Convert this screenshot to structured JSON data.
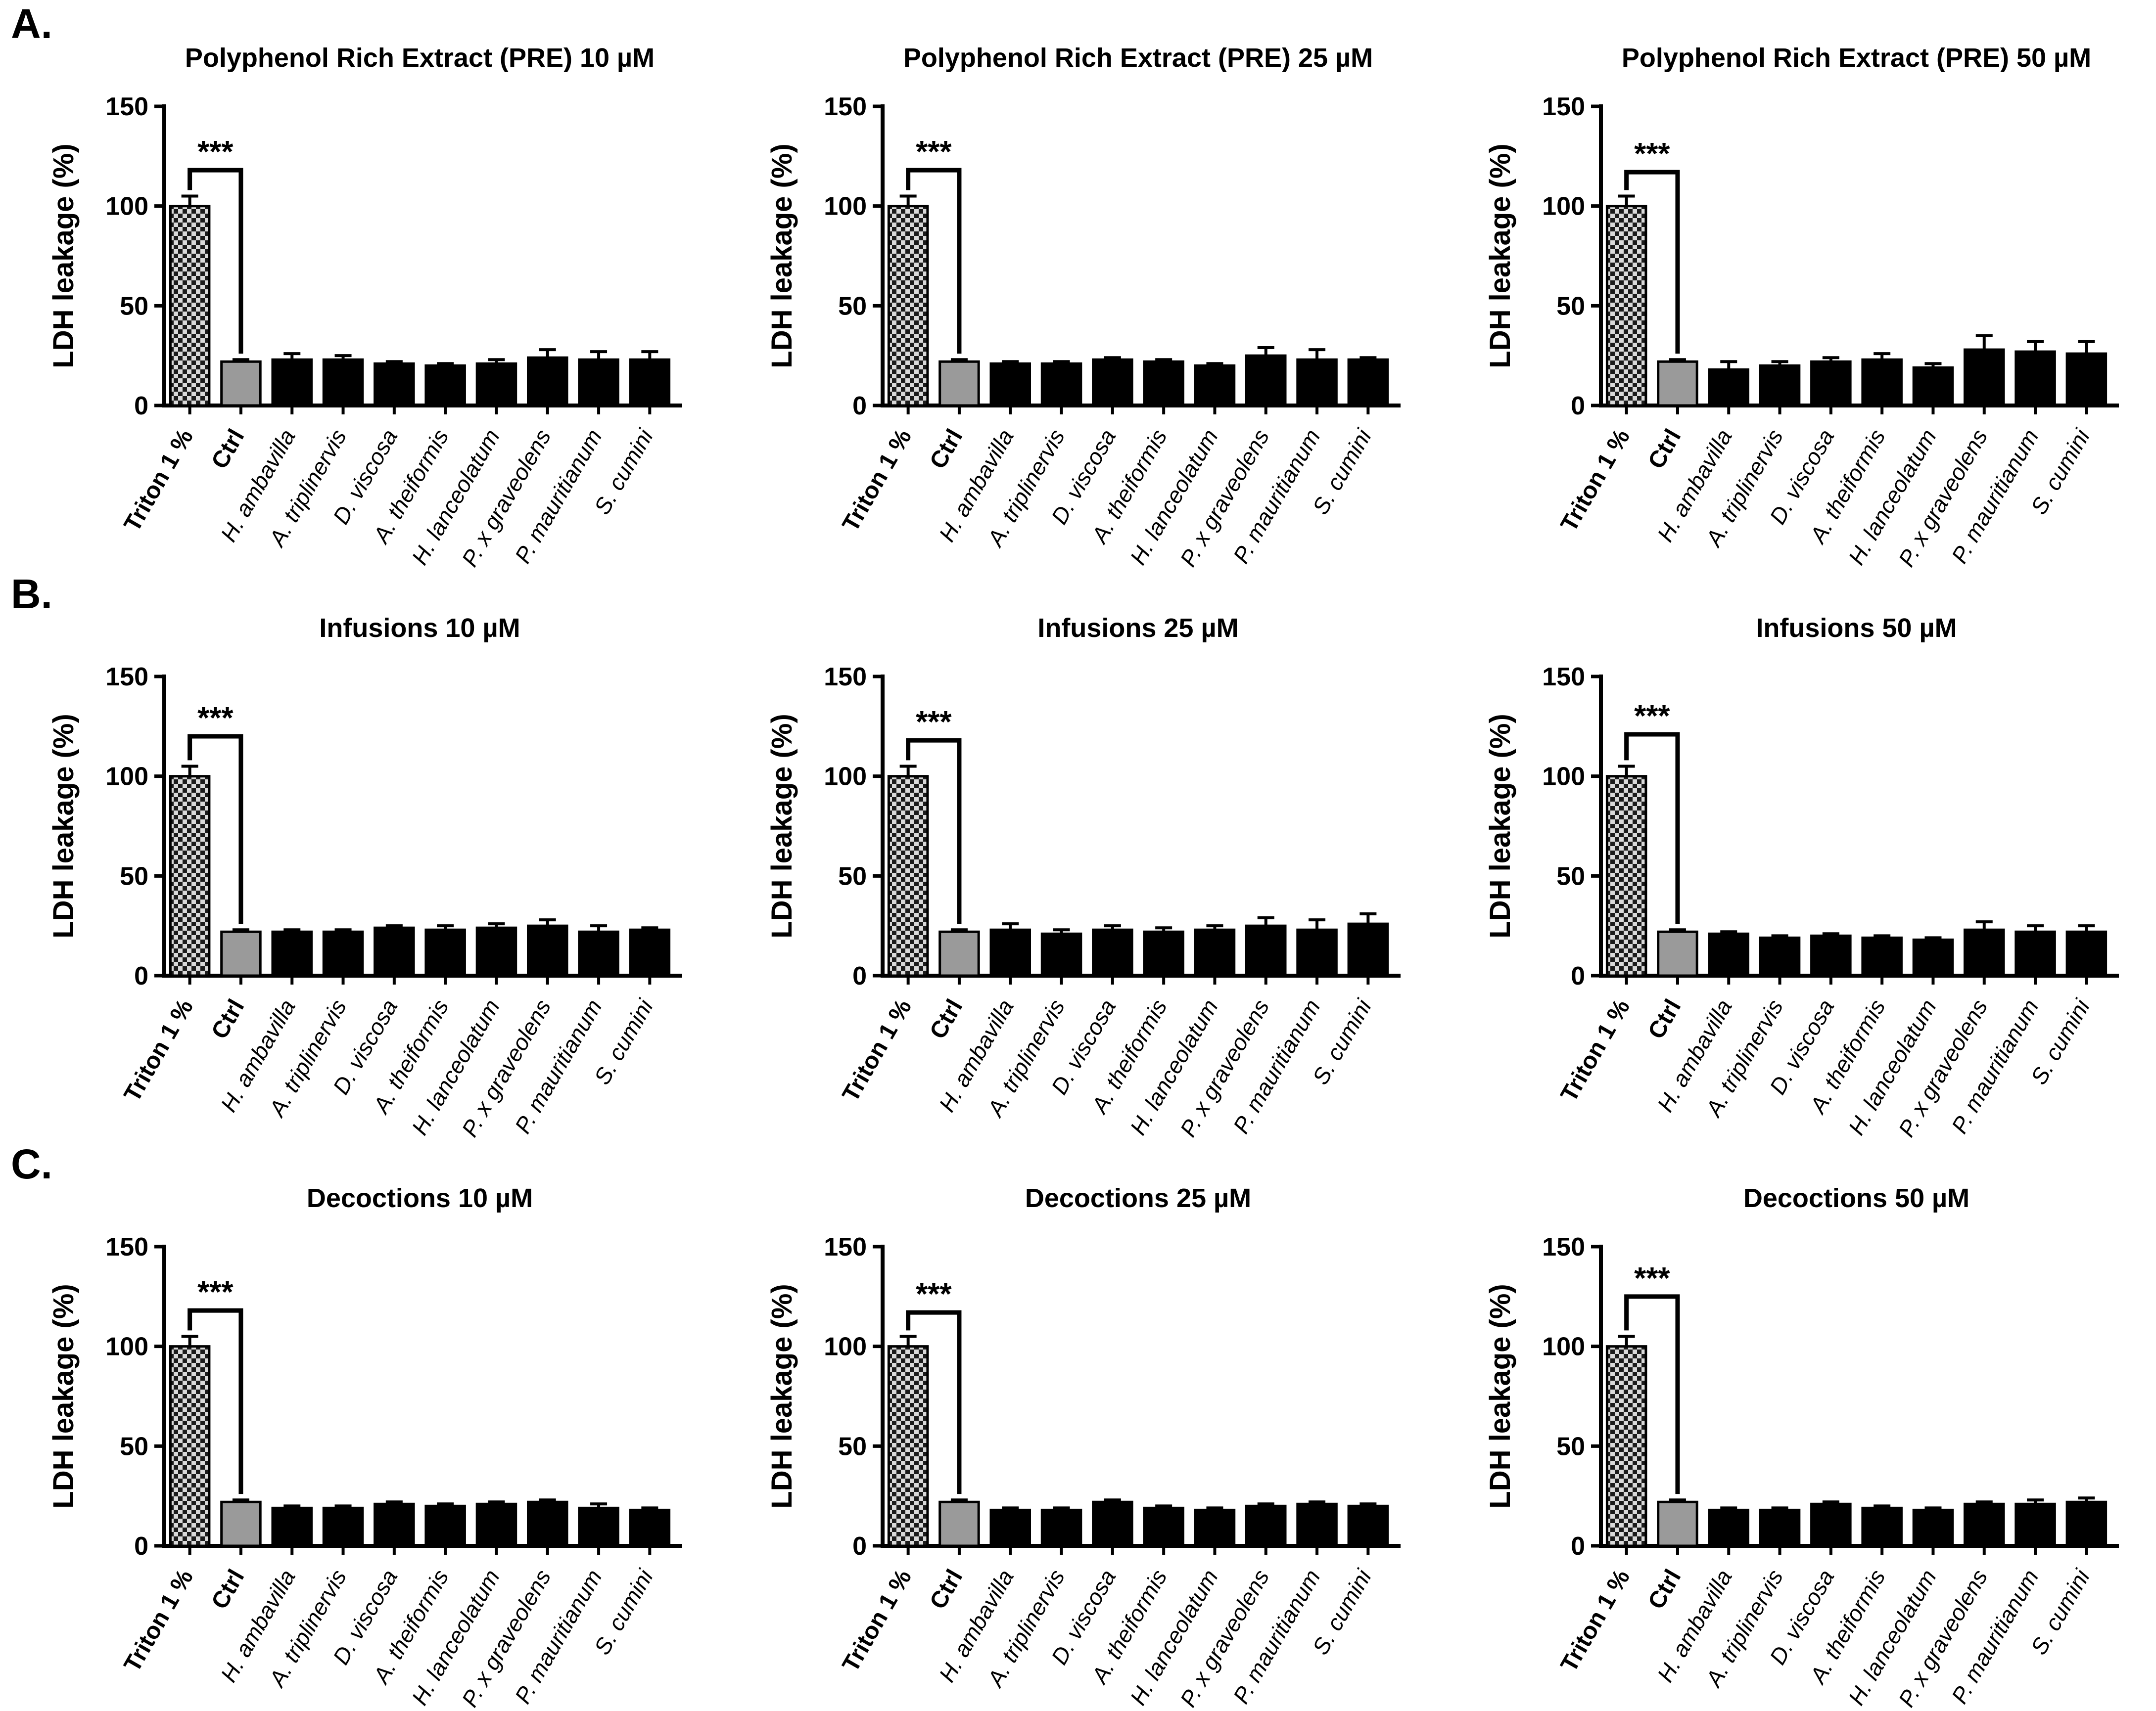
{
  "panels": [
    {
      "label": "A."
    },
    {
      "label": "B."
    },
    {
      "label": "C."
    }
  ],
  "colors": {
    "axis": "#000000",
    "bar_black": "#000000",
    "ctrl_gray": "#9a9a9a",
    "checker_fg": "#1b1b1b",
    "checker_bg": "#d9d9d9",
    "bar_border": "#000000"
  },
  "chart_data": [
    {
      "type": "bar",
      "panel": "A.",
      "title": "Polyphenol Rich Extract (PRE) 10 µM",
      "ylabel": "LDH leakage (%)",
      "ylim": [
        0,
        150
      ],
      "yticks": [
        0,
        50,
        100,
        150
      ],
      "categories": [
        "Triton 1 %",
        "Ctrl",
        "H. ambavilla",
        "A. triplinervis",
        "D. viscosa",
        "A. theiformis",
        "H. lanceolatum",
        "P. x graveolens",
        "P. mauritianum",
        "S. cumini"
      ],
      "values": [
        100,
        22,
        23,
        23,
        21,
        20,
        21,
        24,
        23,
        23
      ],
      "errors": [
        5,
        1,
        3,
        2,
        1,
        1,
        2,
        4,
        4,
        4
      ],
      "bar_types": [
        "checker",
        "gray",
        "black",
        "black",
        "black",
        "black",
        "black",
        "black",
        "black",
        "black"
      ],
      "significance": {
        "label": "***",
        "between": [
          "Triton 1 %",
          "Ctrl"
        ],
        "bracket_top": 118
      }
    },
    {
      "type": "bar",
      "panel": "A.",
      "title": "Polyphenol Rich Extract (PRE) 25 µM",
      "ylabel": "LDH leakage (%)",
      "ylim": [
        0,
        150
      ],
      "yticks": [
        0,
        50,
        100,
        150
      ],
      "categories": [
        "Triton 1 %",
        "Ctrl",
        "H. ambavilla",
        "A. triplinervis",
        "D. viscosa",
        "A. theiformis",
        "H. lanceolatum",
        "P. x graveolens",
        "P. mauritianum",
        "S. cumini"
      ],
      "values": [
        100,
        22,
        21,
        21,
        23,
        22,
        20,
        25,
        23,
        23
      ],
      "errors": [
        5,
        1,
        1,
        1,
        1,
        1,
        1,
        4,
        5,
        1
      ],
      "bar_types": [
        "checker",
        "gray",
        "black",
        "black",
        "black",
        "black",
        "black",
        "black",
        "black",
        "black"
      ],
      "significance": {
        "label": "***",
        "between": [
          "Triton 1 %",
          "Ctrl"
        ],
        "bracket_top": 118
      }
    },
    {
      "type": "bar",
      "panel": "A.",
      "title": "Polyphenol Rich Extract (PRE) 50 µM",
      "ylabel": "LDH leakage (%)",
      "ylim": [
        0,
        150
      ],
      "yticks": [
        0,
        50,
        100,
        150
      ],
      "categories": [
        "Triton 1 %",
        "Ctrl",
        "H. ambavilla",
        "A. triplinervis",
        "D. viscosa",
        "A. theiformis",
        "H. lanceolatum",
        "P. x graveolens",
        "P. mauritianum",
        "S. cumini"
      ],
      "values": [
        100,
        22,
        18,
        20,
        22,
        23,
        19,
        28,
        27,
        26
      ],
      "errors": [
        5,
        1,
        4,
        2,
        2,
        3,
        2,
        7,
        5,
        6
      ],
      "bar_types": [
        "checker",
        "gray",
        "black",
        "black",
        "black",
        "black",
        "black",
        "black",
        "black",
        "black"
      ],
      "significance": {
        "label": "***",
        "between": [
          "Triton 1 %",
          "Ctrl"
        ],
        "bracket_top": 117
      }
    },
    {
      "type": "bar",
      "panel": "B.",
      "title": "Infusions 10 µM",
      "ylabel": "LDH leakage (%)",
      "ylim": [
        0,
        150
      ],
      "yticks": [
        0,
        50,
        100,
        150
      ],
      "categories": [
        "Triton 1 %",
        "Ctrl",
        "H. ambavilla",
        "A. triplinervis",
        "D. viscosa",
        "A. theiformis",
        "H. lanceolatum",
        "P. x graveolens",
        "P. mauritianum",
        "S. cumini"
      ],
      "values": [
        100,
        22,
        22,
        22,
        24,
        23,
        24,
        25,
        22,
        23
      ],
      "errors": [
        5,
        1,
        1,
        1,
        1,
        2,
        2,
        3,
        3,
        1
      ],
      "bar_types": [
        "checker",
        "gray",
        "black",
        "black",
        "black",
        "black",
        "black",
        "black",
        "black",
        "black"
      ],
      "significance": {
        "label": "***",
        "between": [
          "Triton 1 %",
          "Ctrl"
        ],
        "bracket_top": 120
      }
    },
    {
      "type": "bar",
      "panel": "B.",
      "title": "Infusions 25 µM",
      "ylabel": "LDH leakage (%)",
      "ylim": [
        0,
        150
      ],
      "yticks": [
        0,
        50,
        100,
        150
      ],
      "categories": [
        "Triton 1 %",
        "Ctrl",
        "H. ambavilla",
        "A. triplinervis",
        "D. viscosa",
        "A. theiformis",
        "H. lanceolatum",
        "P. x graveolens",
        "P. mauritianum",
        "S. cumini"
      ],
      "values": [
        100,
        22,
        23,
        21,
        23,
        22,
        23,
        25,
        23,
        26
      ],
      "errors": [
        5,
        1,
        3,
        2,
        2,
        2,
        2,
        4,
        5,
        5
      ],
      "bar_types": [
        "checker",
        "gray",
        "black",
        "black",
        "black",
        "black",
        "black",
        "black",
        "black",
        "black"
      ],
      "significance": {
        "label": "***",
        "between": [
          "Triton 1 %",
          "Ctrl"
        ],
        "bracket_top": 118
      }
    },
    {
      "type": "bar",
      "panel": "B.",
      "title": "Infusions 50 µM",
      "ylabel": "LDH leakage (%)",
      "ylim": [
        0,
        150
      ],
      "yticks": [
        0,
        50,
        100,
        150
      ],
      "categories": [
        "Triton 1 %",
        "Ctrl",
        "H. ambavilla",
        "A. triplinervis",
        "D. viscosa",
        "A. theiformis",
        "H. lanceolatum",
        "P. x graveolens",
        "P. mauritianum",
        "S. cumini"
      ],
      "values": [
        100,
        22,
        21,
        19,
        20,
        19,
        18,
        23,
        22,
        22
      ],
      "errors": [
        5,
        1,
        1,
        1,
        1,
        1,
        1,
        4,
        3,
        3
      ],
      "bar_types": [
        "checker",
        "gray",
        "black",
        "black",
        "black",
        "black",
        "black",
        "black",
        "black",
        "black"
      ],
      "significance": {
        "label": "***",
        "between": [
          "Triton 1 %",
          "Ctrl"
        ],
        "bracket_top": 121
      }
    },
    {
      "type": "bar",
      "panel": "C.",
      "title": "Decoctions 10 µM",
      "ylabel": "LDH leakage (%)",
      "ylim": [
        0,
        150
      ],
      "yticks": [
        0,
        50,
        100,
        150
      ],
      "categories": [
        "Triton 1 %",
        "Ctrl",
        "H. ambavilla",
        "A. triplinervis",
        "D. viscosa",
        "A. theiformis",
        "H. lanceolatum",
        "P. x graveolens",
        "P. mauritianum",
        "S. cumini"
      ],
      "values": [
        100,
        22,
        19,
        19,
        21,
        20,
        21,
        22,
        19,
        18
      ],
      "errors": [
        5,
        1,
        1,
        1,
        1,
        1,
        1,
        1,
        2,
        1
      ],
      "bar_types": [
        "checker",
        "gray",
        "black",
        "black",
        "black",
        "black",
        "black",
        "black",
        "black",
        "black"
      ],
      "significance": {
        "label": "***",
        "between": [
          "Triton 1 %",
          "Ctrl"
        ],
        "bracket_top": 118
      }
    },
    {
      "type": "bar",
      "panel": "C.",
      "title": "Decoctions 25 µM",
      "ylabel": "LDH leakage (%)",
      "ylim": [
        0,
        150
      ],
      "yticks": [
        0,
        50,
        100,
        150
      ],
      "categories": [
        "Triton 1 %",
        "Ctrl",
        "H. ambavilla",
        "A. triplinervis",
        "D. viscosa",
        "A. theiformis",
        "H. lanceolatum",
        "P. x graveolens",
        "P. mauritianum",
        "S. cumini"
      ],
      "values": [
        100,
        22,
        18,
        18,
        22,
        19,
        18,
        20,
        21,
        20
      ],
      "errors": [
        5,
        1,
        1,
        1,
        1,
        1,
        1,
        1,
        1,
        1
      ],
      "bar_types": [
        "checker",
        "gray",
        "black",
        "black",
        "black",
        "black",
        "black",
        "black",
        "black",
        "black"
      ],
      "significance": {
        "label": "***",
        "between": [
          "Triton 1 %",
          "Ctrl"
        ],
        "bracket_top": 117
      }
    },
    {
      "type": "bar",
      "panel": "C.",
      "title": "Decoctions 50 µM",
      "ylabel": "LDH leakage (%)",
      "ylim": [
        0,
        150
      ],
      "yticks": [
        0,
        50,
        100,
        150
      ],
      "categories": [
        "Triton 1 %",
        "Ctrl",
        "H. ambavilla",
        "A. triplinervis",
        "D. viscosa",
        "A. theiformis",
        "H. lanceolatum",
        "P. x graveolens",
        "P. mauritianum",
        "S. cumini"
      ],
      "values": [
        100,
        22,
        18,
        18,
        21,
        19,
        18,
        21,
        21,
        22
      ],
      "errors": [
        5,
        1,
        1,
        1,
        1,
        1,
        1,
        1,
        2,
        2
      ],
      "bar_types": [
        "checker",
        "gray",
        "black",
        "black",
        "black",
        "black",
        "black",
        "black",
        "black",
        "black"
      ],
      "significance": {
        "label": "***",
        "between": [
          "Triton 1 %",
          "Ctrl"
        ],
        "bracket_top": 125
      }
    }
  ]
}
